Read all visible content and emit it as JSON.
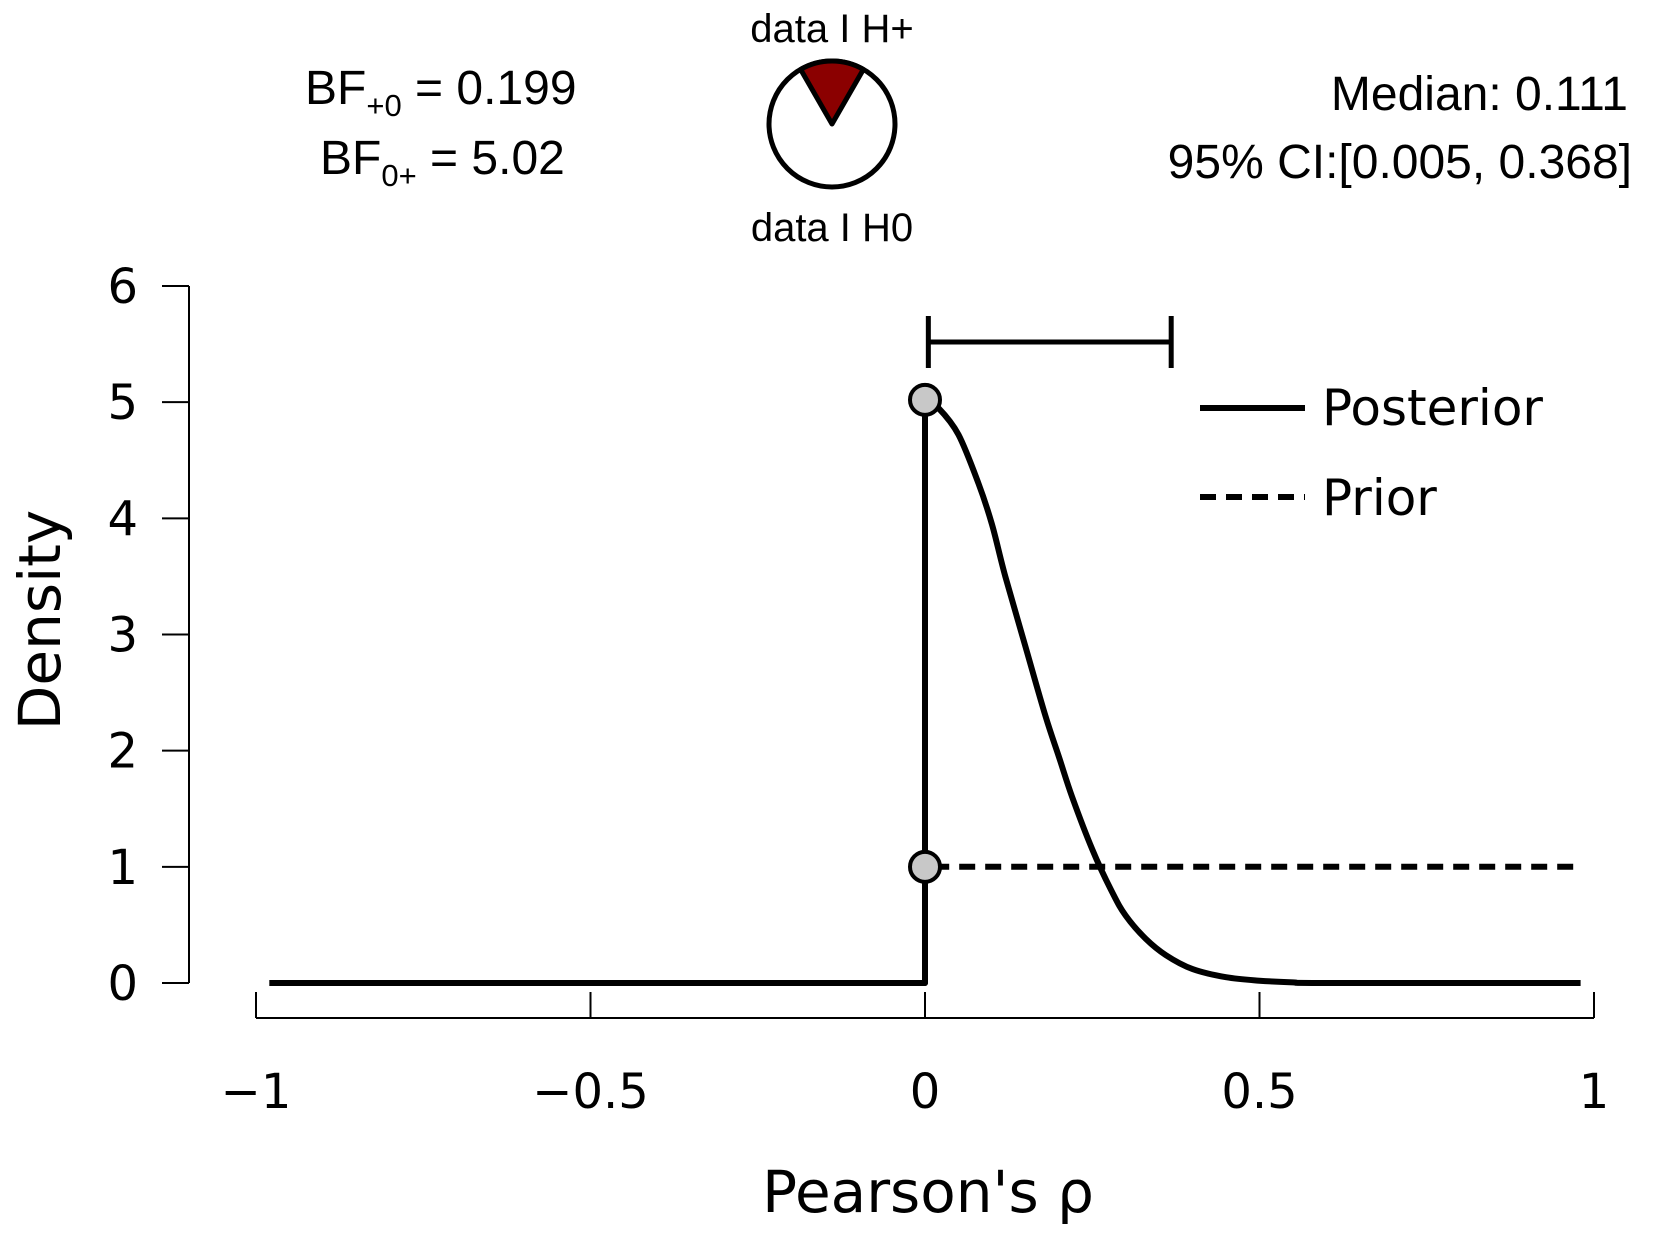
{
  "chart_data": {
    "type": "line",
    "xlabel": "Pearson's ρ",
    "ylabel": "Density",
    "xlim": [
      -1,
      1
    ],
    "ylim": [
      0,
      6
    ],
    "x_ticks": [
      -1,
      -0.5,
      0,
      0.5,
      1
    ],
    "x_tick_labels": [
      "−1",
      "−0.5",
      "0",
      "0.5",
      "1"
    ],
    "y_ticks": [
      0,
      1,
      2,
      3,
      4,
      5,
      6
    ],
    "y_tick_labels": [
      "0",
      "1",
      "2",
      "3",
      "4",
      "5",
      "6"
    ],
    "grid": false,
    "legend": {
      "position": "top-right",
      "entries": [
        {
          "name": "Posterior",
          "style": "solid"
        },
        {
          "name": "Prior",
          "style": "dashed"
        }
      ]
    },
    "series": [
      {
        "name": "Posterior",
        "style": "solid",
        "points": [
          [
            -0.98,
            0
          ],
          [
            0,
            0
          ],
          [
            0,
            5.02
          ],
          [
            0.02,
            4.95
          ],
          [
            0.05,
            4.72
          ],
          [
            0.08,
            4.3
          ],
          [
            0.1,
            3.95
          ],
          [
            0.12,
            3.5
          ],
          [
            0.15,
            2.9
          ],
          [
            0.18,
            2.3
          ],
          [
            0.2,
            1.95
          ],
          [
            0.22,
            1.6
          ],
          [
            0.25,
            1.15
          ],
          [
            0.28,
            0.78
          ],
          [
            0.3,
            0.58
          ],
          [
            0.33,
            0.38
          ],
          [
            0.36,
            0.24
          ],
          [
            0.4,
            0.12
          ],
          [
            0.45,
            0.05
          ],
          [
            0.5,
            0.02
          ],
          [
            0.55,
            0.005
          ],
          [
            0.6,
            0
          ],
          [
            0.98,
            0
          ]
        ]
      },
      {
        "name": "Prior",
        "style": "dashed",
        "points": [
          [
            -0.98,
            0
          ],
          [
            0,
            0
          ],
          [
            0,
            1
          ],
          [
            0.98,
            1
          ]
        ]
      }
    ],
    "points_at_zero": [
      {
        "series": "Posterior",
        "x": 0,
        "y": 5.02
      },
      {
        "series": "Prior",
        "x": 0,
        "y": 1
      }
    ],
    "credible_interval": {
      "lower": 0.005,
      "upper": 0.368,
      "y": 5.5
    }
  },
  "header": {
    "bf_plus0_label": "BF",
    "bf_plus0_sub": "+0",
    "bf_plus0_value": " = 0.199",
    "bf_0plus_label": "BF",
    "bf_0plus_sub": "0+",
    "bf_0plus_value": " = 5.02",
    "pie_top_label": "data I H+",
    "pie_bottom_label": "data I H0",
    "pie_fraction_hplus": 0.166,
    "median_text": "Median: 0.111",
    "ci_text": "95% CI:[0.005, 0.368]"
  },
  "colors": {
    "line": "#000000",
    "point_fill": "#c8c8c8",
    "pie_hplus": "#8b0000",
    "pie_h0": "#ffffff"
  }
}
